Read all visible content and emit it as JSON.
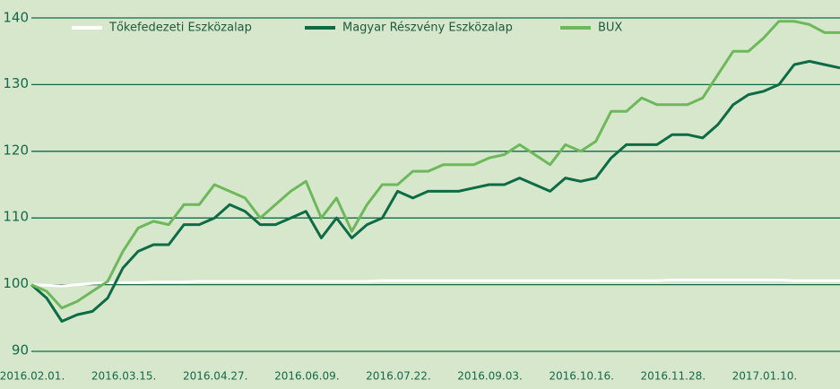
{
  "chart_data": {
    "type": "line",
    "categories": [
      "2016.02.01.",
      null,
      null,
      null,
      null,
      null,
      "2016.03.15.",
      null,
      null,
      null,
      null,
      null,
      "2016.04.27.",
      null,
      null,
      null,
      null,
      null,
      "2016.06.09.",
      null,
      null,
      null,
      null,
      null,
      "2016.07.22.",
      null,
      null,
      null,
      null,
      null,
      "2016.09.03.",
      null,
      null,
      null,
      null,
      null,
      "2016.10.16.",
      null,
      null,
      null,
      null,
      null,
      "2016.11.28.",
      null,
      null,
      null,
      null,
      null,
      "2017.01.10.",
      null,
      null,
      null,
      null,
      null
    ],
    "series": [
      {
        "name": "Tőkefedezeti Eszközalap",
        "color": "#ffffff",
        "values": [
          100,
          99.9,
          99.8,
          100,
          100.2,
          100.3,
          100.3,
          100.3,
          100.4,
          100.4,
          100.4,
          100.5,
          100.5,
          100.5,
          100.5,
          100.5,
          100.5,
          100.5,
          100.5,
          100.5,
          100.5,
          100.5,
          100.5,
          100.6,
          100.6,
          100.6,
          100.6,
          100.6,
          100.6,
          100.6,
          100.6,
          100.6,
          100.6,
          100.6,
          100.6,
          100.6,
          100.6,
          100.6,
          100.6,
          100.6,
          100.6,
          100.6,
          100.7,
          100.7,
          100.7,
          100.7,
          100.7,
          100.7,
          100.7,
          100.7,
          100.6,
          100.6,
          100.6,
          100.6
        ]
      },
      {
        "name": "Magyar Részvény Eszközalap",
        "color": "#0d6b45",
        "values": [
          100,
          98,
          94.5,
          95.5,
          96,
          98,
          102.5,
          105,
          106,
          106,
          109,
          109,
          110,
          112,
          111,
          109,
          109,
          110,
          111,
          107,
          110,
          107,
          109,
          110,
          114,
          113,
          114,
          114,
          114,
          114.5,
          115,
          115,
          116,
          115,
          114,
          116,
          115.5,
          116,
          119,
          121,
          121,
          121,
          122.5,
          122.5,
          122,
          124,
          127,
          128.5,
          129,
          130,
          133,
          133.5,
          133,
          132.5
        ]
      },
      {
        "name": "BUX",
        "color": "#6cb85a",
        "values": [
          100,
          99,
          96.5,
          97.5,
          99,
          100.5,
          105,
          108.5,
          109.5,
          109,
          112,
          112,
          115,
          114,
          113,
          110,
          112,
          114,
          115.5,
          110,
          113,
          108,
          112,
          115,
          115,
          117,
          117,
          118,
          118,
          118,
          119,
          119.5,
          121,
          119.5,
          118,
          121,
          120,
          121.5,
          126,
          126,
          128,
          127,
          127,
          127,
          128,
          131.5,
          135,
          135,
          137,
          139.5,
          139.5,
          139,
          137.8,
          137.8
        ]
      }
    ],
    "ylim": [
      90,
      140
    ],
    "yticks": [
      90,
      100,
      110,
      120,
      130,
      140
    ],
    "grid": true
  }
}
